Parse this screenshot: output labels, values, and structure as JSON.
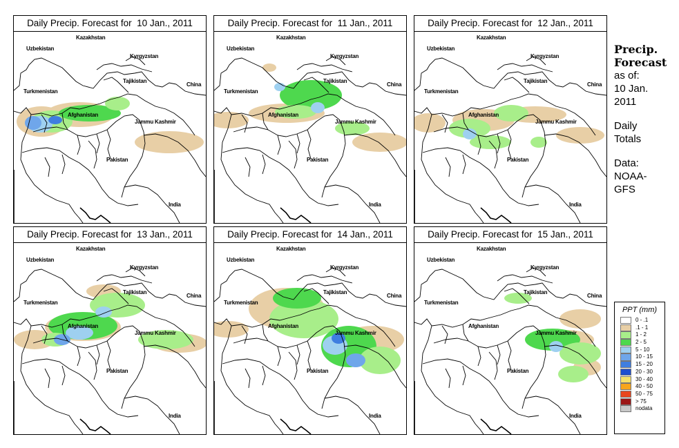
{
  "panels": [
    {
      "title": "Daily Precip. Forecast for  10 Jan., 2011"
    },
    {
      "title": "Daily Precip. Forecast for  11 Jan., 2011"
    },
    {
      "title": "Daily Precip. Forecast for  12 Jan., 2011"
    },
    {
      "title": "Daily Precip. Forecast for  13 Jan., 2011"
    },
    {
      "title": "Daily Precip. Forecast for  14 Jan., 2011"
    },
    {
      "title": "Daily Precip. Forecast for  15 Jan., 2011"
    }
  ],
  "map_labels": {
    "kazakhstan": "Kazakhstan",
    "uzbekistan": "Uzbekistan",
    "kyrgyzstan": "Kyrgyzstan",
    "tajikistan": "Tajikistan",
    "china": "China",
    "turkmenistan": "Turkmenistan",
    "afghanistan": "Afghanistan",
    "jammu_kashmir": "Jammu Kashmir",
    "pakistan": "Pakistan",
    "india": "India"
  },
  "sidebar": {
    "title": "Precip. Forecast",
    "as_of": "as of:",
    "date_line1": "10 Jan.",
    "date_line2": "2011",
    "totals_line1": "Daily",
    "totals_line2": "Totals",
    "data_line1": "Data:",
    "data_line2": "NOAA-",
    "data_line3": "GFS"
  },
  "legend": {
    "title": "PPT (mm)",
    "items": [
      {
        "range": "0 - .1",
        "color": "#ffffff"
      },
      {
        "range": ".1 - 1",
        "color": "#e8cfa6"
      },
      {
        "range": "1 - 2",
        "color": "#a8ee8a"
      },
      {
        "range": "2 - 5",
        "color": "#4ed84e"
      },
      {
        "range": "5 - 10",
        "color": "#9ed0f0"
      },
      {
        "range": "10 - 15",
        "color": "#6fa6ea"
      },
      {
        "range": "15 - 20",
        "color": "#3f7ee0"
      },
      {
        "range": "20 - 30",
        "color": "#1f4fcf"
      },
      {
        "range": "30 - 40",
        "color": "#f6e16a"
      },
      {
        "range": "40 - 50",
        "color": "#f7a51c"
      },
      {
        "range": "50 - 75",
        "color": "#e8461e"
      },
      {
        "range": "> 75",
        "color": "#9c1616"
      },
      {
        "range": "nodata",
        "color": "#c8c8c8"
      }
    ]
  }
}
